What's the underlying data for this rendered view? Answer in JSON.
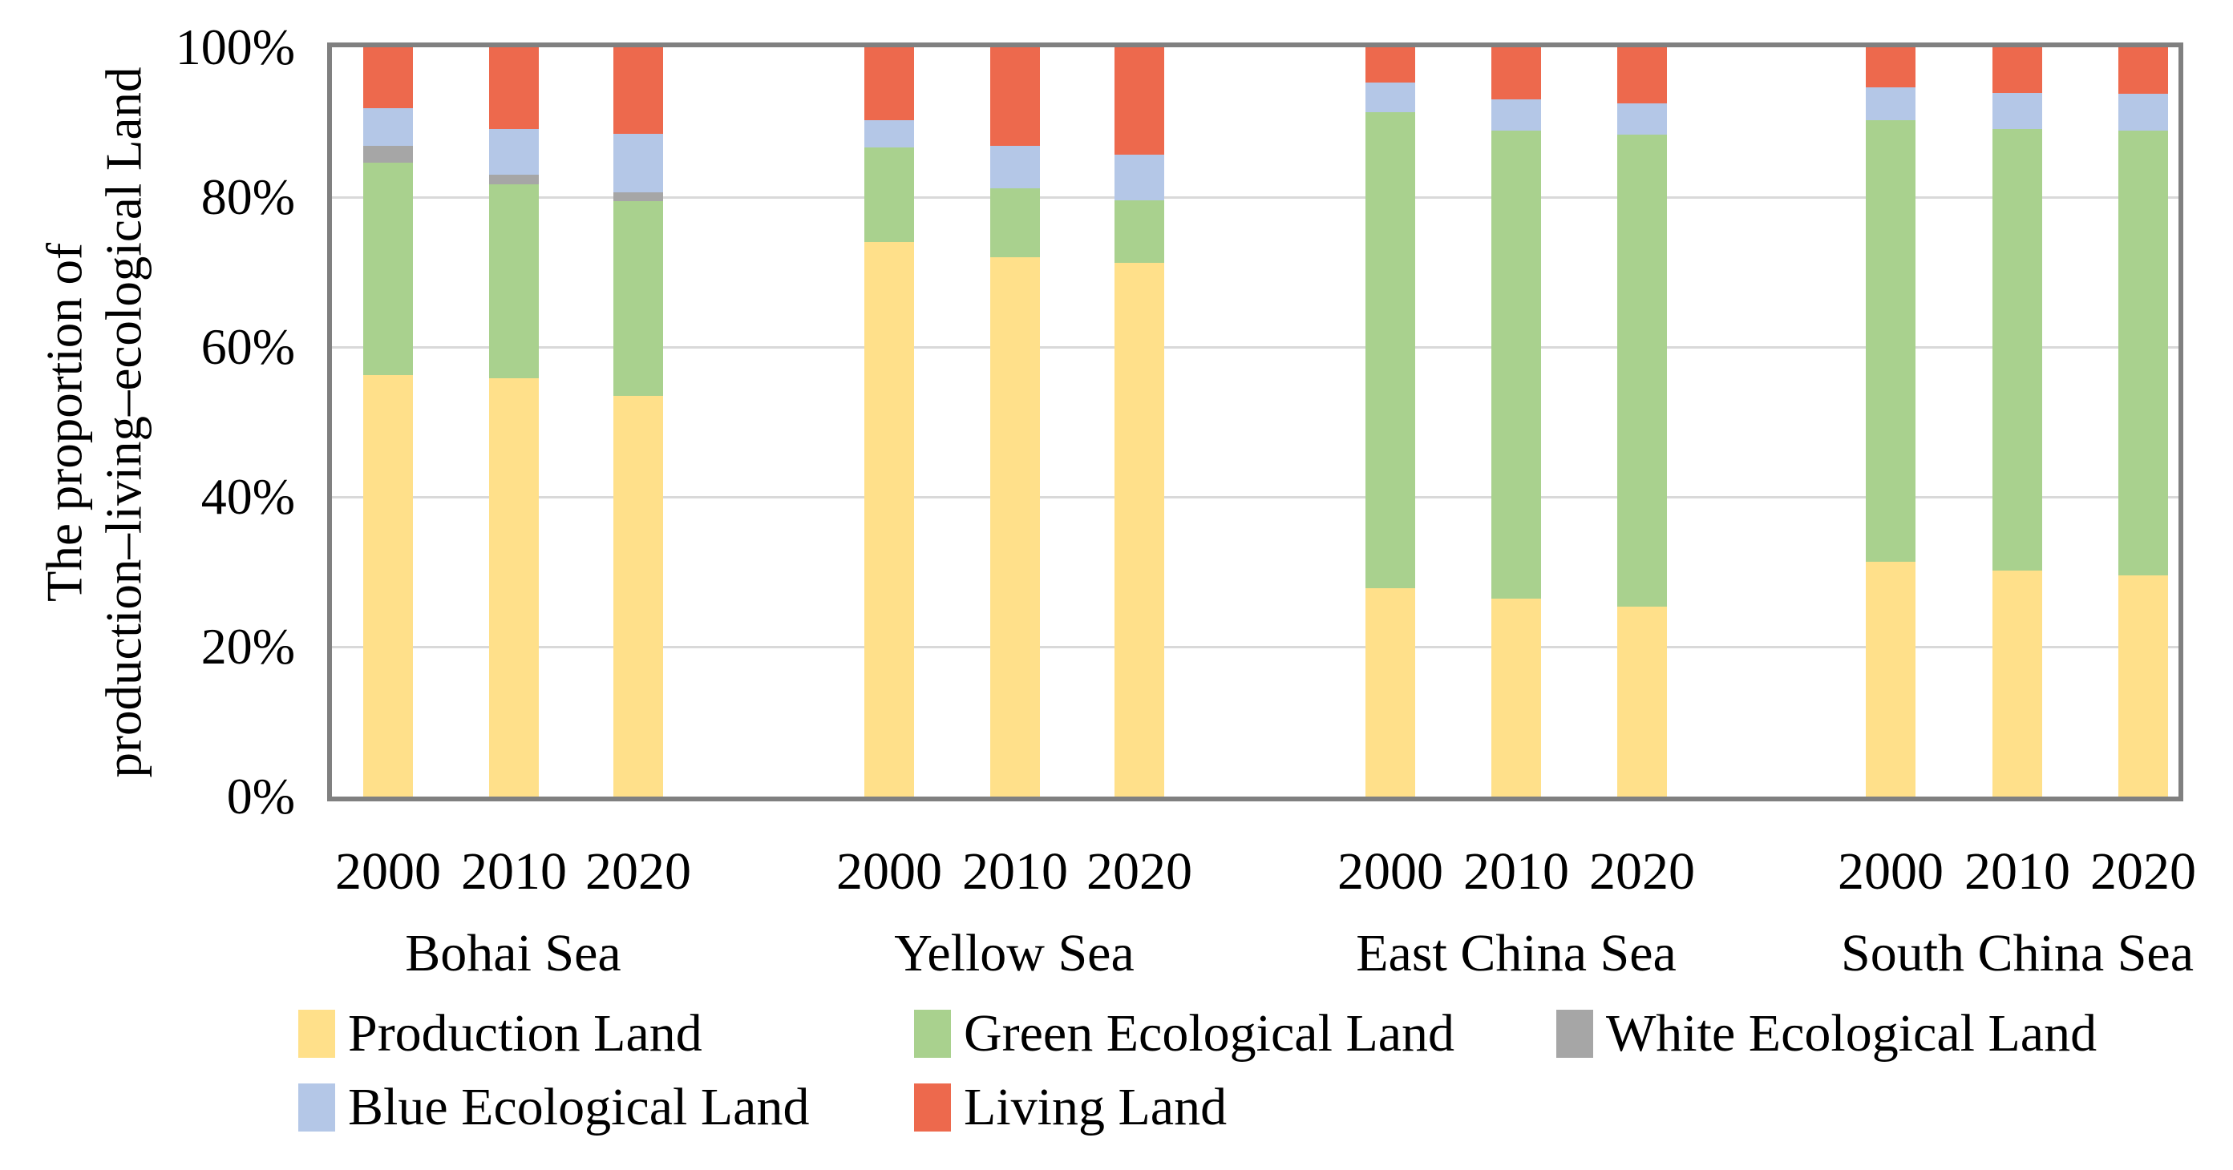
{
  "figure": {
    "y_axis_title_line1": "The proportion of",
    "y_axis_title_line2": "production–living–ecological Land"
  },
  "chart_data": {
    "type": "bar",
    "stacked": true,
    "unit": "percent",
    "ylim": [
      0,
      100
    ],
    "grid": "horizontal, every 20%",
    "legend_position": "bottom",
    "ylabel": "The proportion of production–living–ecological Land",
    "y_ticks": [
      "100%",
      "80%",
      "60%",
      "40%",
      "20%",
      "0%"
    ],
    "y_tick_values": [
      100,
      80,
      60,
      40,
      20,
      0
    ],
    "groups": [
      "Bohai Sea",
      "Yellow Sea",
      "East China Sea",
      "South China Sea"
    ],
    "years": [
      "2000",
      "2010",
      "2020"
    ],
    "series": [
      {
        "name": "Production Land",
        "color": "#FFE08A",
        "values": {
          "Bohai Sea": [
            56.3,
            55.8,
            53.5
          ],
          "Yellow Sea": [
            74.0,
            72.0,
            71.2
          ],
          "East China Sea": [
            27.8,
            26.4,
            25.4
          ],
          "South China Sea": [
            31.3,
            30.2,
            29.5
          ]
        }
      },
      {
        "name": "Green Ecological Land",
        "color": "#A9D18E",
        "values": {
          "Bohai Sea": [
            28.3,
            25.9,
            26.0
          ],
          "Yellow Sea": [
            12.6,
            9.2,
            8.4
          ],
          "East China Sea": [
            63.5,
            62.5,
            62.9
          ],
          "South China Sea": [
            59.0,
            58.9,
            59.4
          ]
        }
      },
      {
        "name": "White Ecological Land",
        "color": "#A6A6A6",
        "values": {
          "Bohai Sea": [
            2.3,
            1.3,
            1.1
          ],
          "Yellow Sea": [
            0.0,
            0.0,
            0.0
          ],
          "East China Sea": [
            0.0,
            0.0,
            0.0
          ],
          "South China Sea": [
            0.0,
            0.0,
            0.0
          ]
        }
      },
      {
        "name": "Blue Ecological Land",
        "color": "#B4C7E7",
        "values": {
          "Bohai Sea": [
            5.0,
            6.1,
            7.9
          ],
          "Yellow Sea": [
            3.7,
            5.6,
            6.1
          ],
          "East China Sea": [
            4.0,
            4.1,
            4.2
          ],
          "South China Sea": [
            4.4,
            4.8,
            4.9
          ]
        }
      },
      {
        "name": "Living Land",
        "color": "#ED694D",
        "values": {
          "Bohai Sea": [
            8.1,
            10.9,
            11.5
          ],
          "Yellow Sea": [
            9.7,
            13.2,
            14.3
          ],
          "East China Sea": [
            4.7,
            7.0,
            7.5
          ],
          "South China Sea": [
            5.3,
            6.1,
            6.2
          ]
        }
      }
    ],
    "legend_rows": [
      [
        "Production Land",
        "Green Ecological Land",
        "White Ecological Land"
      ],
      [
        "Blue Ecological Land",
        "Living Land"
      ]
    ]
  }
}
